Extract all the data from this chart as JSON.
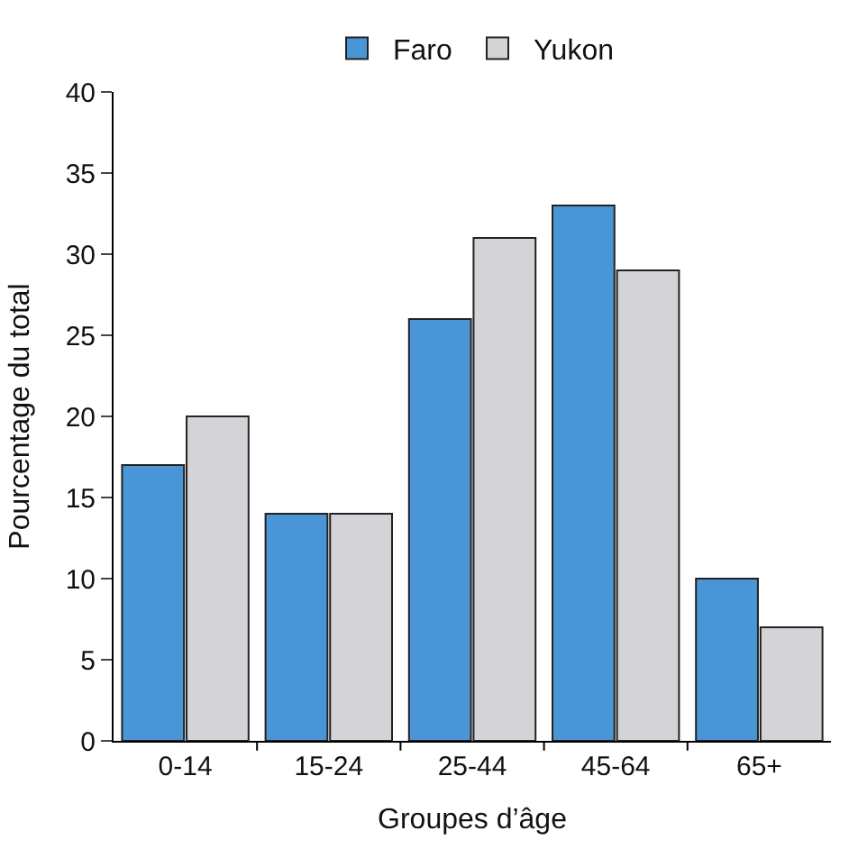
{
  "chart_data": {
    "type": "bar",
    "xlabel": "Groupes d’âge",
    "ylabel": "Pourcentage du total",
    "categories": [
      "0-14",
      "15-24",
      "25-44",
      "45-64",
      "65+"
    ],
    "series": [
      {
        "name": "Faro",
        "color": "#4a95d6",
        "values": [
          17,
          14,
          26,
          33,
          10
        ]
      },
      {
        "name": "Yukon",
        "color": "#d4d4d8",
        "values": [
          20,
          14,
          31,
          29,
          7
        ]
      }
    ],
    "ylim": [
      0,
      40
    ],
    "yticks": [
      0,
      5,
      10,
      15,
      20,
      25,
      30,
      35,
      40
    ],
    "legend": "top"
  }
}
